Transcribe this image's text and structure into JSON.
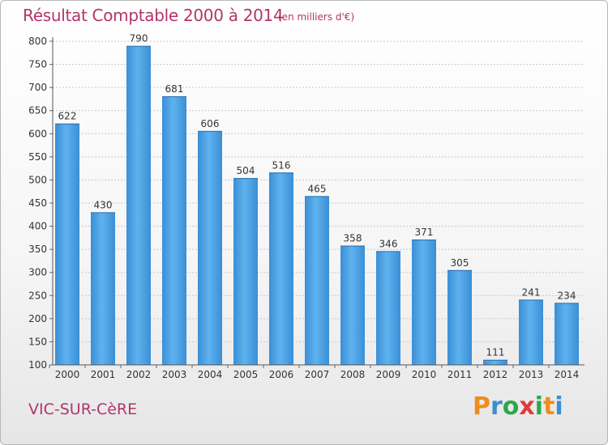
{
  "header": {
    "title": "Résultat Comptable 2000 à 2014",
    "subtitle": "(en milliers d'€)"
  },
  "footer": {
    "place": "VIC-SUR-CèRE",
    "logo": {
      "letters": [
        "P",
        "r",
        "o",
        "x",
        "i",
        "t",
        "i"
      ],
      "colors": [
        "#f08c1e",
        "#3a8fd1",
        "#2aa84a",
        "#e23a3a",
        "#2aa84a",
        "#f08c1e",
        "#3a8fd1"
      ]
    }
  },
  "chart_data": {
    "type": "bar",
    "categories": [
      "2000",
      "2001",
      "2002",
      "2003",
      "2004",
      "2005",
      "2006",
      "2007",
      "2008",
      "2009",
      "2010",
      "2011",
      "2012",
      "2013",
      "2014"
    ],
    "values": [
      622,
      430,
      790,
      681,
      606,
      504,
      516,
      465,
      358,
      346,
      371,
      305,
      111,
      241,
      234
    ],
    "data_labels": [
      "622",
      "430",
      "790",
      "681",
      "606",
      "504",
      "516",
      "465",
      "358",
      "346",
      "371",
      "305",
      "111",
      "241",
      "234"
    ],
    "yticks": [
      "100",
      "150",
      "200",
      "250",
      "300",
      "350",
      "400",
      "450",
      "500",
      "550",
      "600",
      "650",
      "700",
      "750",
      "800"
    ],
    "ylim": [
      100,
      800
    ],
    "grid": true,
    "bar_color": "#3a8fd6",
    "bar_color_light": "#5fb2ee"
  }
}
